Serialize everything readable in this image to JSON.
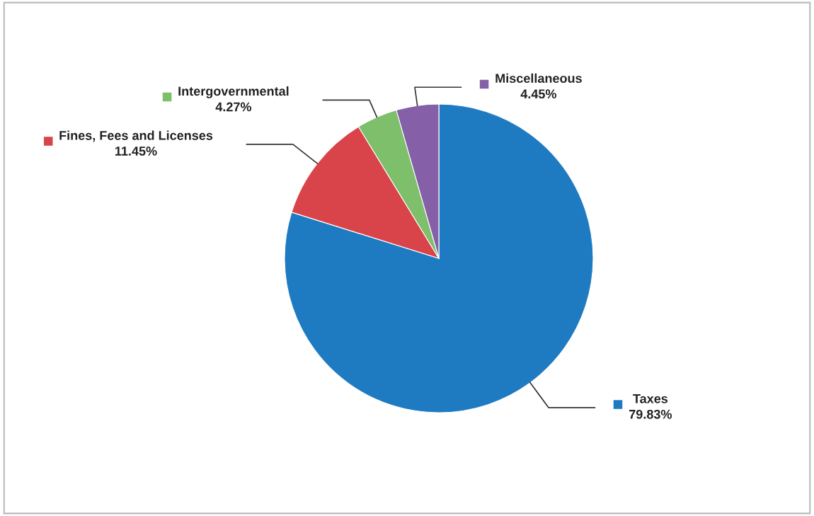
{
  "chart_data": {
    "type": "pie",
    "categories": [
      "Taxes",
      "Fines, Fees and Licenses",
      "Intergovernmental",
      "Miscellaneous"
    ],
    "values": [
      79.83,
      11.45,
      4.27,
      4.45
    ],
    "value_labels": [
      "79.83%",
      "11.45%",
      "4.27%",
      "4.45%"
    ],
    "colors": [
      "#1f7bc1",
      "#d9434a",
      "#7dbf6a",
      "#8560a8"
    ],
    "legend": "top"
  }
}
